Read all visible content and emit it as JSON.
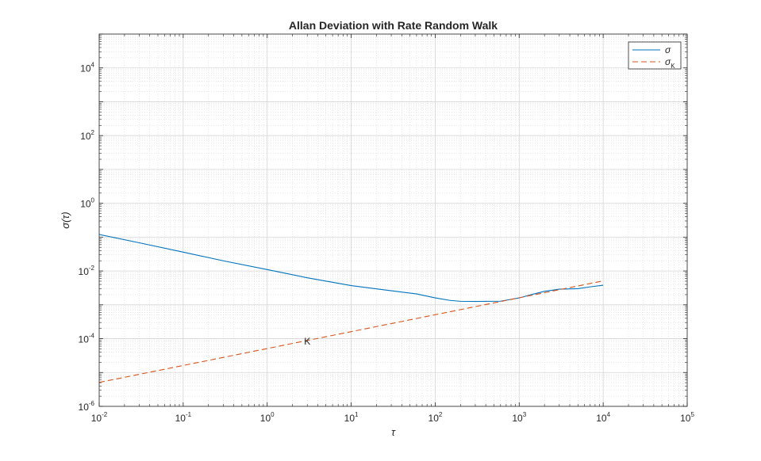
{
  "chart_data": {
    "type": "line",
    "title": "Allan Deviation with Rate Random Walk",
    "xlabel": "τ",
    "ylabel": "σ(τ)",
    "xscale": "log",
    "yscale": "log",
    "xlim": [
      0.01,
      100000
    ],
    "ylim": [
      1e-06,
      100000
    ],
    "grid": true,
    "minor_grid": true,
    "legend_position": "top-right",
    "x_ticks": [
      {
        "base": "10",
        "exp": "-2"
      },
      {
        "base": "10",
        "exp": "-1"
      },
      {
        "base": "10",
        "exp": "0"
      },
      {
        "base": "10",
        "exp": "1"
      },
      {
        "base": "10",
        "exp": "2"
      },
      {
        "base": "10",
        "exp": "3"
      },
      {
        "base": "10",
        "exp": "4"
      },
      {
        "base": "10",
        "exp": "5"
      }
    ],
    "y_ticks": [
      {
        "base": "10",
        "exp": "-6"
      },
      {
        "base": "10",
        "exp": "-4"
      },
      {
        "base": "10",
        "exp": "-2"
      },
      {
        "base": "10",
        "exp": "0"
      },
      {
        "base": "10",
        "exp": "2"
      },
      {
        "base": "10",
        "exp": "4"
      }
    ],
    "series": [
      {
        "name": "σ",
        "color": "#0072BD",
        "style": "solid",
        "x": [
          0.01,
          0.03,
          0.1,
          0.3,
          1,
          3,
          10,
          30,
          60,
          100,
          150,
          200,
          300,
          600,
          1000,
          1500,
          2000,
          3000,
          5000,
          7000,
          10000
        ],
        "y": [
          0.12,
          0.068,
          0.036,
          0.02,
          0.011,
          0.0063,
          0.0037,
          0.0026,
          0.0021,
          0.0016,
          0.00135,
          0.00127,
          0.00126,
          0.00128,
          0.0016,
          0.0021,
          0.0025,
          0.0029,
          0.003,
          0.0034,
          0.0038
        ]
      },
      {
        "name": "σ",
        "subscript": "K",
        "color": "#D95319",
        "style": "dashed",
        "x": [
          0.01,
          10000
        ],
        "y": [
          5.1e-06,
          0.0051
        ]
      }
    ],
    "annotations": [
      {
        "text": "K",
        "x": 3,
        "y": 8.84e-05
      }
    ]
  }
}
